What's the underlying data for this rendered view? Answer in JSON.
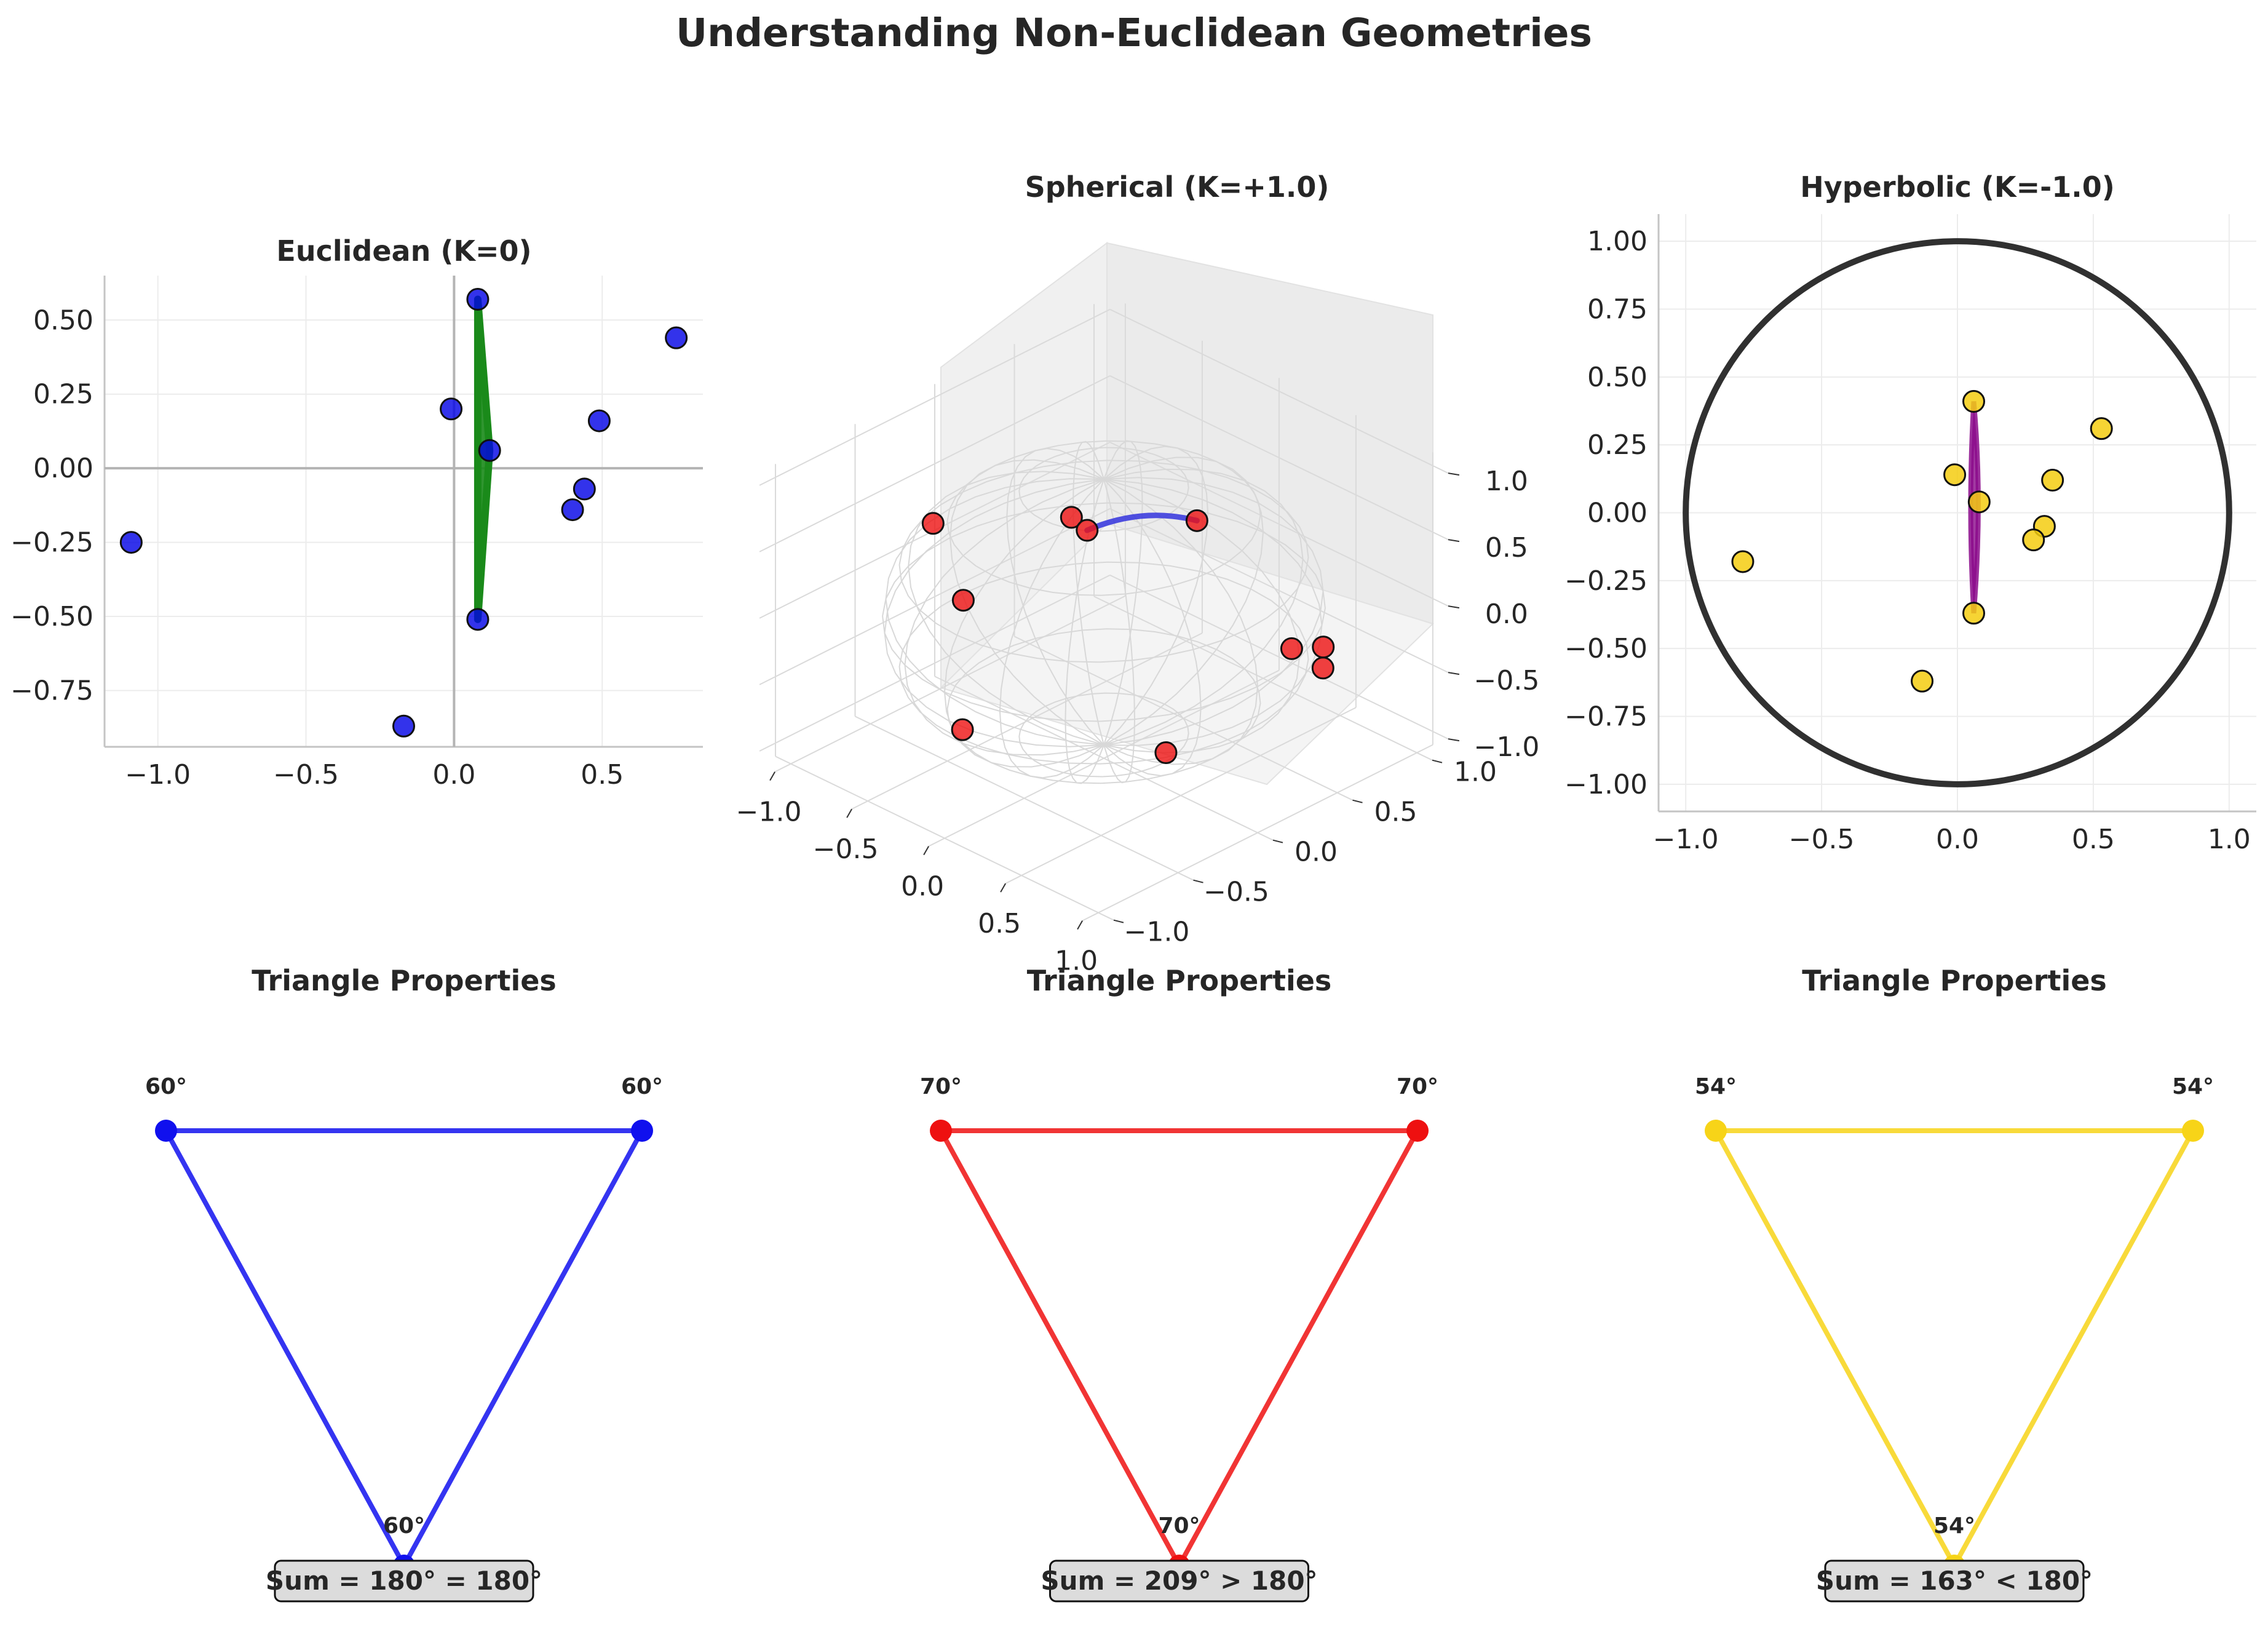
{
  "suptitle": "Understanding Non-Euclidean Geometries",
  "colors": {
    "euclid_points": "#0000e6",
    "euclid_triangle": "#1a8a1a",
    "sphere_points": "#ee1111",
    "sphere_geodesic": "#3333dd",
    "hyper_points": "#f5cc11",
    "hyper_geodesic": "#8b0a8b",
    "disk_boundary": "#303030",
    "tri_blue": "#1010ee",
    "tri_red": "#ee1010",
    "tri_yellow": "#f7d418"
  },
  "chart_data": [
    {
      "type": "scatter",
      "title": "Euclidean (K=0)",
      "xlim": [
        -1.18,
        0.84
      ],
      "ylim": [
        -0.94,
        0.65
      ],
      "xticks": [
        -1.0,
        -0.5,
        0.0,
        0.5
      ],
      "xtick_labels": [
        "−1.0",
        "−0.5",
        "0.0",
        "0.5"
      ],
      "yticks": [
        -0.75,
        -0.5,
        -0.25,
        0.0,
        0.25,
        0.5
      ],
      "ytick_labels": [
        "−0.75",
        "−0.50",
        "−0.25",
        "0.00",
        "0.25",
        "0.50"
      ],
      "grid": true,
      "points": [
        [
          0.08,
          0.57
        ],
        [
          0.75,
          0.44
        ],
        [
          -0.01,
          0.2
        ],
        [
          0.49,
          0.16
        ],
        [
          0.12,
          0.06
        ],
        [
          0.44,
          -0.07
        ],
        [
          0.4,
          -0.14
        ],
        [
          -1.09,
          -0.25
        ],
        [
          0.08,
          -0.51
        ],
        [
          -0.17,
          -0.87
        ]
      ],
      "triangle": [
        [
          0.08,
          0.57
        ],
        [
          0.12,
          0.06
        ],
        [
          0.08,
          -0.51
        ]
      ]
    },
    {
      "type": "scatter",
      "title": "Spherical (K=+1.0)",
      "axes": "3d",
      "xticks": [
        -1.0,
        -0.5,
        0.0,
        0.5,
        1.0
      ],
      "xtick_labels": [
        "−1.0",
        "−0.5",
        "0.0",
        "0.5",
        "1.0"
      ],
      "yticks": [
        -1.0,
        -0.5,
        0.0,
        0.5,
        1.0
      ],
      "ytick_labels": [
        "−1.0",
        "−0.5",
        "0.0",
        "0.5",
        "1.0"
      ],
      "zticks": [
        -1.0,
        -0.5,
        0.0,
        0.5,
        1.0
      ],
      "ztick_labels": [
        "−1.0",
        "−0.5",
        "0.0",
        "0.5",
        "1.0"
      ],
      "points": [
        [
          0.1,
          -0.3,
          0.95
        ],
        [
          0.15,
          -0.25,
          0.85
        ],
        [
          0.45,
          0.15,
          0.85
        ],
        [
          -0.8,
          -0.3,
          0.4
        ],
        [
          -0.5,
          -0.4,
          0.05
        ],
        [
          0.6,
          0.6,
          -0.3
        ],
        [
          0.65,
          0.75,
          -0.35
        ],
        [
          0.7,
          0.7,
          -0.45
        ],
        [
          -0.35,
          -0.55,
          -0.75
        ],
        [
          0.3,
          0.1,
          -0.95
        ]
      ],
      "geodesic": [
        [
          0.15,
          -0.25,
          0.85
        ],
        [
          0.3,
          -0.05,
          0.9
        ],
        [
          0.45,
          0.15,
          0.85
        ]
      ]
    },
    {
      "type": "scatter",
      "title": "Hyperbolic (K=-1.0)",
      "xlim": [
        -1.1,
        1.1
      ],
      "ylim": [
        -1.1,
        1.1
      ],
      "xticks": [
        -1.0,
        -0.5,
        0.0,
        0.5,
        1.0
      ],
      "xtick_labels": [
        "−1.0",
        "−0.5",
        "0.0",
        "0.5",
        "1.0"
      ],
      "yticks": [
        -1.0,
        -0.75,
        -0.5,
        -0.25,
        0.0,
        0.25,
        0.5,
        0.75,
        1.0
      ],
      "ytick_labels": [
        "−1.00",
        "−0.75",
        "−0.50",
        "−0.25",
        "0.00",
        "0.25",
        "0.50",
        "0.75",
        "1.00"
      ],
      "grid": true,
      "points": [
        [
          0.06,
          0.41
        ],
        [
          0.53,
          0.31
        ],
        [
          -0.01,
          0.14
        ],
        [
          0.35,
          0.12
        ],
        [
          0.08,
          0.04
        ],
        [
          0.32,
          -0.05
        ],
        [
          0.28,
          -0.1
        ],
        [
          -0.79,
          -0.18
        ],
        [
          0.06,
          -0.37
        ],
        [
          -0.13,
          -0.62
        ]
      ],
      "disk_radius": 1.0,
      "geodesic_triangle": [
        [
          0.06,
          0.41
        ],
        [
          0.08,
          0.04
        ],
        [
          0.06,
          -0.37
        ]
      ]
    },
    {
      "type": "line",
      "title": "Triangle Properties",
      "angles": [
        "60°",
        "60°",
        "60°"
      ],
      "sum_label": "Sum = 180° = 180°"
    },
    {
      "type": "line",
      "title": "Triangle Properties",
      "angles": [
        "70°",
        "70°",
        "70°"
      ],
      "sum_label": "Sum = 209° > 180°"
    },
    {
      "type": "line",
      "title": "Triangle Properties",
      "angles": [
        "54°",
        "54°",
        "54°"
      ],
      "sum_label": "Sum = 163° < 180°"
    }
  ]
}
